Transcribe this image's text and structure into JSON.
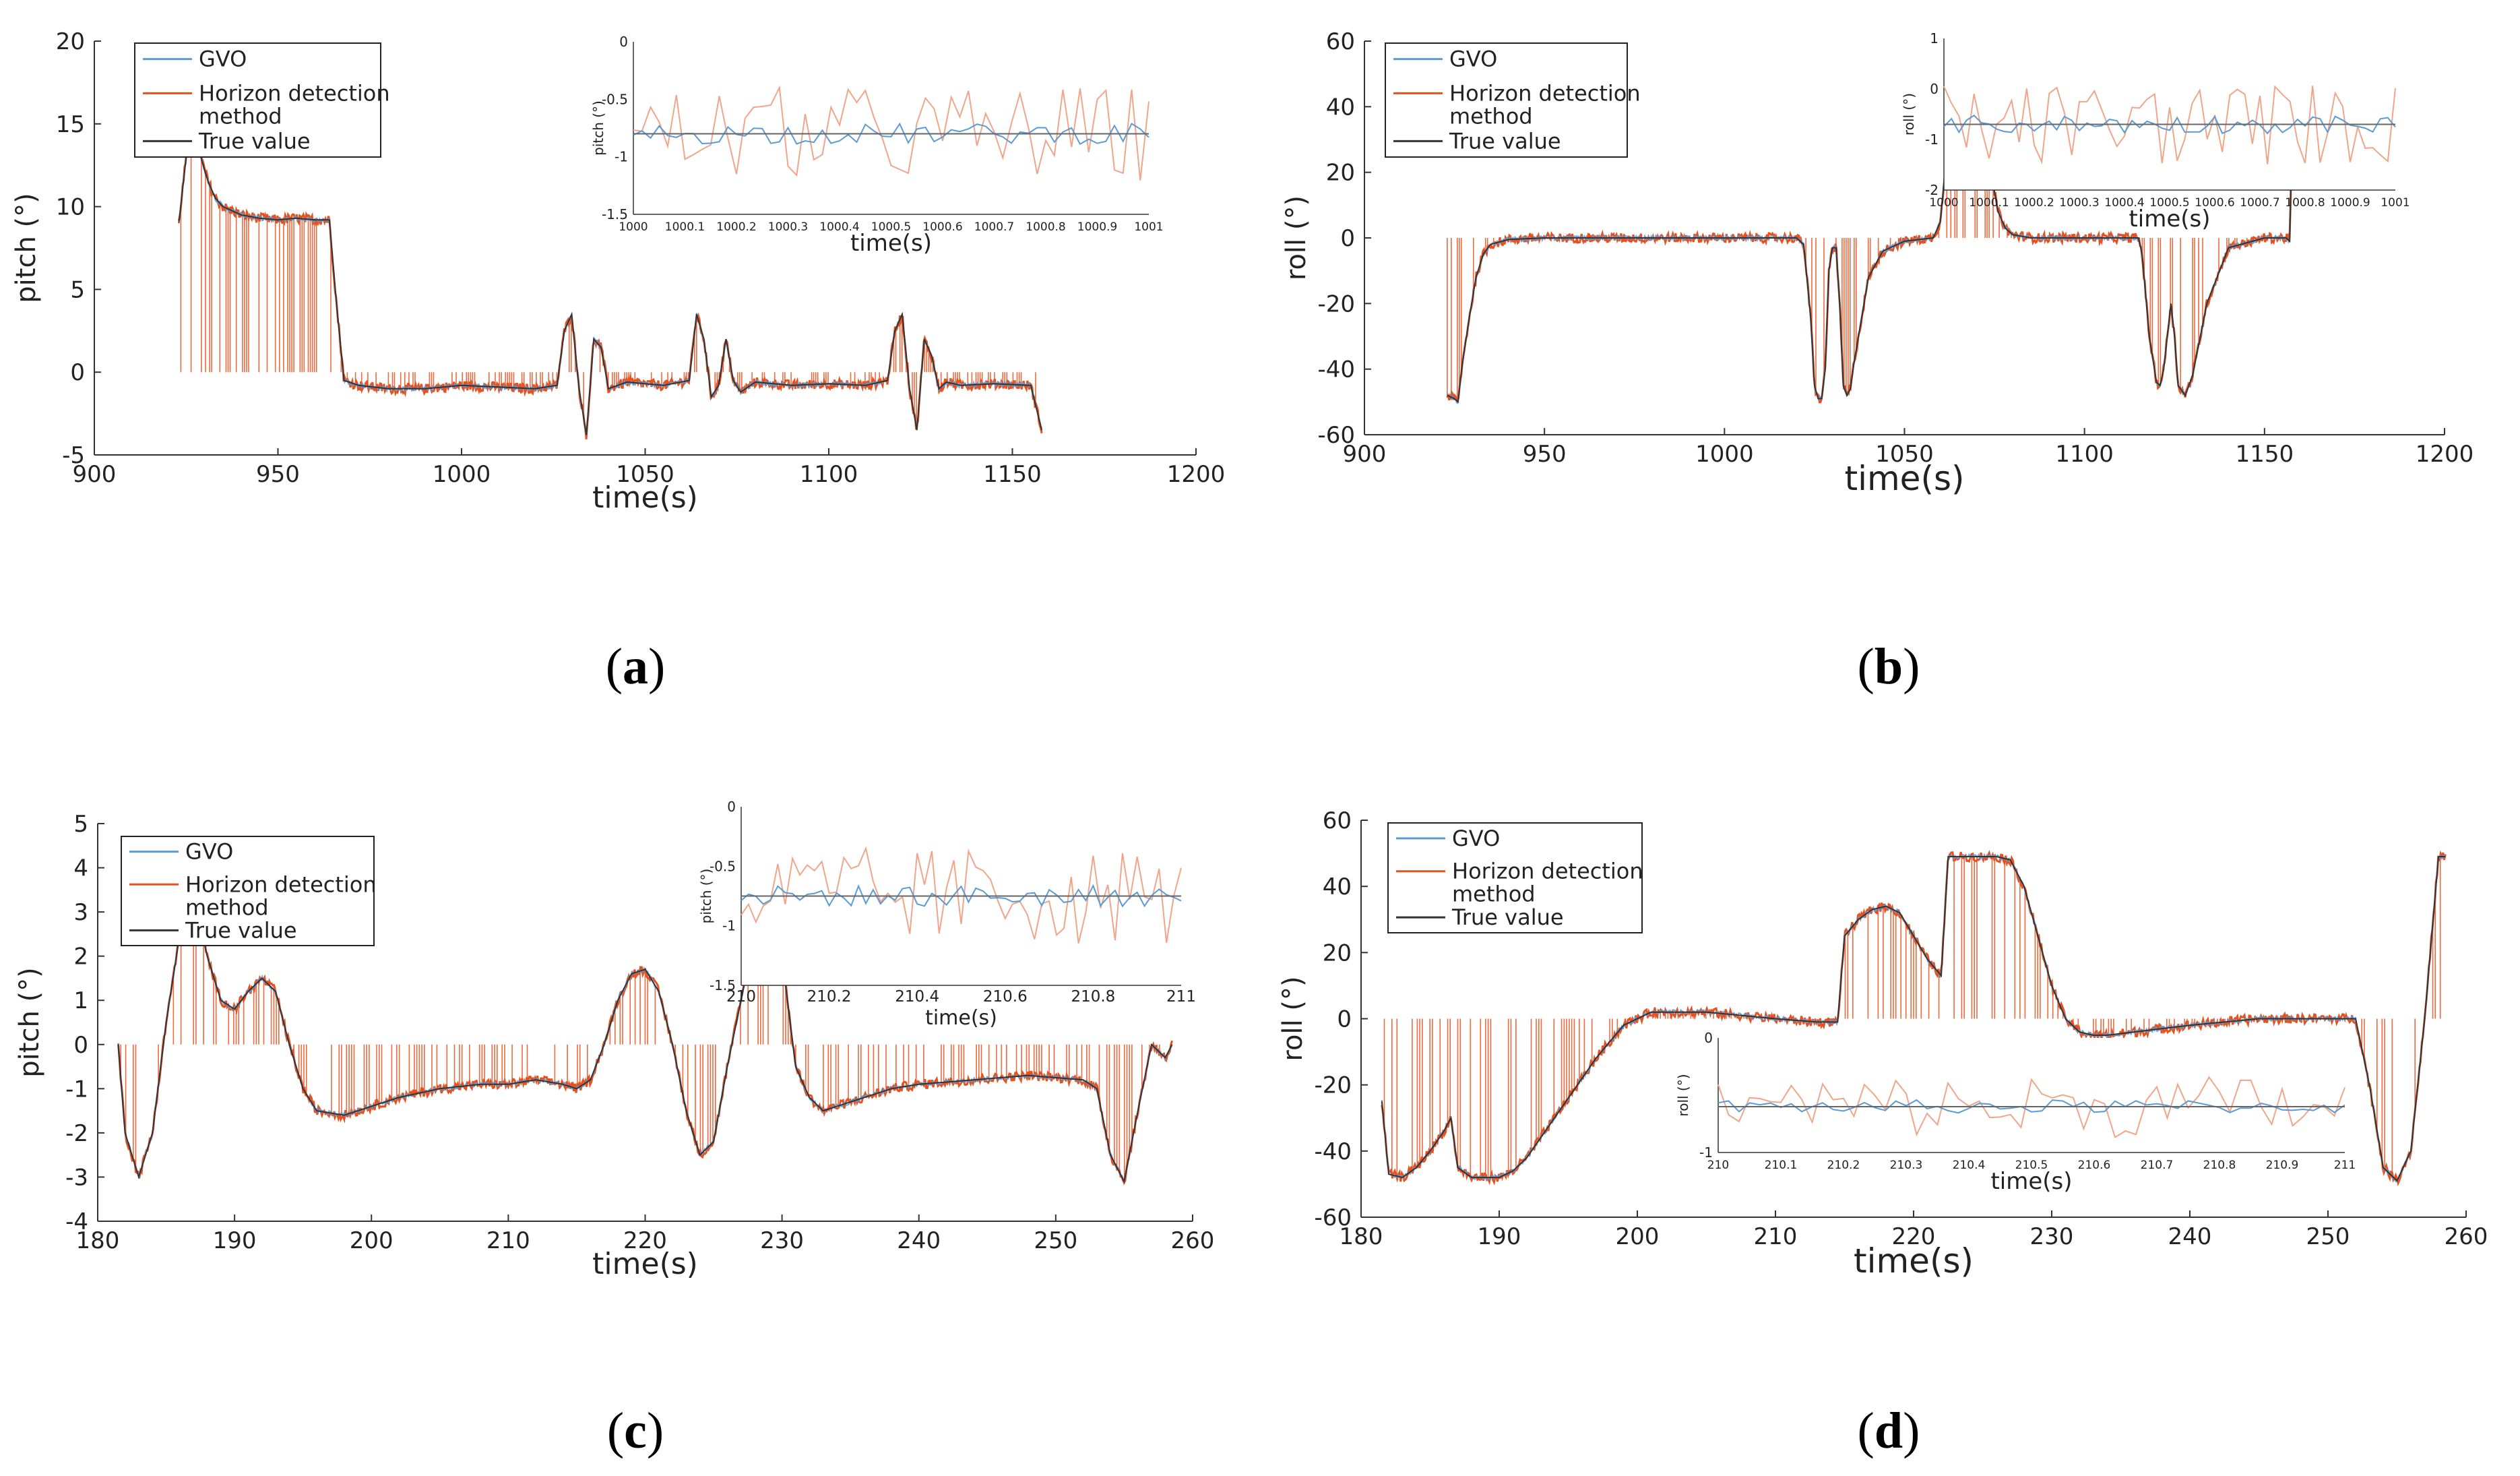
{
  "colors": {
    "gvo": "#5b9bd5",
    "horizon": "#e8501e",
    "truth": "#333333",
    "axis": "#333333"
  },
  "legend": {
    "gvo": "GVO",
    "horizon_line1": "Horizon detection",
    "horizon_line2": "method",
    "truth": "True value"
  },
  "captions": {
    "a": "a",
    "b": "b",
    "c": "c",
    "d": "d"
  },
  "chart_data": [
    {
      "panel": "a",
      "type": "line",
      "xlabel": "time(s)",
      "ylabel": "pitch  (°)",
      "xlim": [
        900,
        1200
      ],
      "ylim": [
        -5,
        20
      ],
      "xticks": [
        "900",
        "950",
        "1000",
        "1050",
        "1100",
        "1150",
        "1200"
      ],
      "yticks": [
        "-5",
        "0",
        "5",
        "10",
        "15",
        "20"
      ],
      "series": [
        {
          "name": "True value",
          "x": [
            923,
            925,
            927,
            929,
            931,
            933,
            935,
            940,
            945,
            950,
            955,
            960,
            964,
            966,
            968,
            972,
            980,
            990,
            1000,
            1010,
            1020,
            1026,
            1028,
            1030,
            1032,
            1034,
            1036,
            1038,
            1040,
            1045,
            1055,
            1062,
            1064,
            1066,
            1068,
            1070,
            1072,
            1074,
            1076,
            1080,
            1090,
            1100,
            1110,
            1116,
            1118,
            1120,
            1122,
            1124,
            1126,
            1128,
            1130,
            1132,
            1136,
            1145,
            1155,
            1158
          ],
          "y": [
            9,
            13,
            14.5,
            13,
            11.5,
            10.5,
            10,
            9.5,
            9.3,
            9.2,
            9.3,
            9.2,
            9.2,
            4,
            -0.5,
            -0.8,
            -1,
            -1,
            -0.8,
            -0.9,
            -1,
            -0.8,
            2.5,
            3.5,
            -1,
            -3.8,
            2,
            1.5,
            -1,
            -0.6,
            -0.8,
            -0.5,
            3.5,
            2,
            -1.5,
            -0.8,
            2,
            -0.5,
            -1.2,
            -0.6,
            -0.8,
            -0.7,
            -0.8,
            -0.5,
            2.5,
            3.5,
            -1,
            -3.5,
            2,
            1,
            -1,
            -0.6,
            -0.8,
            -0.7,
            -0.8,
            -3.5
          ]
        }
      ],
      "inset": {
        "xlabel": "time(s)",
        "ylabel": "pitch  (°)",
        "xlim": [
          1000,
          1001
        ],
        "ylim": [
          -1.5,
          0
        ],
        "xticks": [
          "1000",
          "1000.1",
          "1000.2",
          "1000.3",
          "1000.4",
          "1000.5",
          "1000.6",
          "1000.7",
          "1000.8",
          "1000.9",
          "1001"
        ],
        "yticks": [
          "-1.5",
          "-1",
          "-0.5",
          "0"
        ],
        "true_value": -0.8
      }
    },
    {
      "panel": "b",
      "type": "line",
      "xlabel": "time(s)",
      "ylabel": "roll  (°)",
      "xlim": [
        900,
        1200
      ],
      "ylim": [
        -60,
        60
      ],
      "xticks": [
        "900",
        "950",
        "1000",
        "1050",
        "1100",
        "1150",
        "1200"
      ],
      "yticks": [
        "-60",
        "-40",
        "-20",
        "0",
        "20",
        "40",
        "60"
      ],
      "series": [
        {
          "name": "True value",
          "x": [
            923,
            925,
            926,
            927,
            929,
            931,
            933,
            935,
            940,
            950,
            960,
            980,
            1000,
            1010,
            1020,
            1022,
            1024,
            1025,
            1026,
            1027,
            1028,
            1029,
            1030,
            1031,
            1032,
            1033,
            1034,
            1035,
            1036,
            1038,
            1040,
            1044,
            1050,
            1058,
            1060,
            1062,
            1063,
            1064,
            1065,
            1067,
            1068,
            1069,
            1070,
            1072,
            1074,
            1076,
            1078,
            1080,
            1085,
            1090,
            1100,
            1110,
            1115,
            1116,
            1118,
            1120,
            1121,
            1122,
            1124,
            1125,
            1126,
            1128,
            1130,
            1134,
            1140,
            1150,
            1156,
            1157,
            1158
          ],
          "y": [
            -48,
            -49,
            -50,
            -40,
            -25,
            -12,
            -5,
            -2,
            -0.5,
            0,
            0,
            0,
            0,
            0,
            0,
            -2,
            -25,
            -45,
            -49,
            -49,
            -40,
            -10,
            -3,
            -3,
            -20,
            -45,
            -48,
            -46,
            -38,
            -25,
            -12,
            -4,
            -1,
            0,
            5,
            30,
            48,
            49,
            45,
            20,
            40,
            49,
            48,
            40,
            20,
            8,
            3,
            1,
            0,
            0,
            0,
            0,
            0,
            -5,
            -30,
            -44,
            -45,
            -40,
            -20,
            -30,
            -45,
            -48,
            -42,
            -20,
            -3,
            0,
            0,
            -1,
            50
          ]
        }
      ],
      "inset": {
        "xlabel": "time(s)",
        "ylabel": "roll  (°)",
        "xlim": [
          1000,
          1001
        ],
        "ylim": [
          -2,
          1
        ],
        "xticks": [
          "1000",
          "1000.1",
          "1000.2",
          "1000.3",
          "1000.4",
          "1000.5",
          "1000.6",
          "1000.7",
          "1000.8",
          "1000.9",
          "1001"
        ],
        "yticks": [
          "-2",
          "-1",
          "0",
          "1"
        ],
        "true_value": -0.7
      }
    },
    {
      "panel": "c",
      "type": "line",
      "xlabel": "time(s)",
      "ylabel": "pitch  (°)",
      "xlim": [
        180,
        260
      ],
      "ylim": [
        -4,
        5
      ],
      "xticks": [
        "180",
        "190",
        "200",
        "210",
        "220",
        "230",
        "240",
        "250",
        "260"
      ],
      "yticks": [
        "-4",
        "-3",
        "-2",
        "-1",
        "0",
        "1",
        "2",
        "3",
        "4",
        "5"
      ],
      "series": [
        {
          "name": "True value",
          "x": [
            181.5,
            182,
            183,
            184,
            185,
            186,
            187,
            188,
            189,
            190,
            191,
            192,
            193,
            194,
            195,
            196,
            198,
            200,
            202,
            205,
            208,
            210,
            212,
            214,
            215,
            216,
            217,
            218,
            219,
            220,
            221,
            222,
            223,
            224,
            225,
            226,
            227,
            228,
            229,
            230,
            231,
            232,
            233,
            234,
            236,
            238,
            240,
            244,
            248,
            252,
            253,
            254,
            255,
            256,
            257,
            258,
            258.5
          ],
          "y": [
            0,
            -2,
            -3,
            -2,
            0.5,
            2.5,
            3.4,
            2,
            1,
            0.8,
            1.2,
            1.5,
            1.2,
            0,
            -1,
            -1.5,
            -1.6,
            -1.4,
            -1.2,
            -1,
            -0.9,
            -0.9,
            -0.8,
            -0.9,
            -1,
            -0.8,
            0,
            1,
            1.6,
            1.7,
            1.2,
            0,
            -1.5,
            -2.5,
            -2.2,
            -0.5,
            1,
            2.5,
            3.2,
            2,
            -0.5,
            -1.2,
            -1.5,
            -1.4,
            -1.2,
            -1,
            -0.9,
            -0.8,
            -0.7,
            -0.8,
            -1,
            -2.5,
            -3.1,
            -1.5,
            0,
            -0.3,
            0
          ]
        }
      ],
      "inset": {
        "xlabel": "time(s)",
        "ylabel": "pitch  (°)",
        "xlim": [
          210,
          211
        ],
        "ylim": [
          -1.5,
          0
        ],
        "xticks": [
          "210",
          "210.2",
          "210.4",
          "210.6",
          "210.8",
          "211"
        ],
        "yticks": [
          "-1.5",
          "-1",
          "-0.5",
          "0"
        ],
        "true_value": -0.75
      }
    },
    {
      "panel": "d",
      "type": "line",
      "xlabel": "time(s)",
      "ylabel": "roll  (°)",
      "xlim": [
        180,
        260
      ],
      "ylim": [
        -60,
        60
      ],
      "xticks": [
        "180",
        "190",
        "200",
        "210",
        "220",
        "230",
        "240",
        "250",
        "260"
      ],
      "yticks": [
        "-60",
        "-40",
        "-20",
        "0",
        "20",
        "40",
        "60"
      ],
      "series": [
        {
          "name": "True value",
          "x": [
            181.5,
            182,
            183,
            184,
            185,
            186,
            186.5,
            187,
            188,
            189,
            190,
            191,
            192,
            193,
            195,
            197,
            199,
            201,
            205,
            210,
            213,
            214.5,
            215,
            216,
            217,
            218,
            219,
            220,
            221,
            222,
            222.5,
            223,
            224,
            225,
            226,
            227,
            228,
            229,
            230,
            231,
            232,
            233,
            234,
            236,
            240,
            245,
            250,
            252,
            253,
            254,
            255,
            256,
            257,
            258,
            258.5
          ],
          "y": [
            -25,
            -47,
            -48,
            -45,
            -40,
            -34,
            -30,
            -45,
            -48,
            -48,
            -48,
            -46,
            -42,
            -36,
            -24,
            -12,
            -2,
            2,
            2,
            0,
            -1,
            -1,
            25,
            30,
            33,
            34,
            32,
            25,
            18,
            13,
            49,
            49,
            49,
            49,
            49,
            48,
            40,
            25,
            10,
            0,
            -4,
            -5,
            -5,
            -4,
            -2,
            0,
            0,
            0,
            -20,
            -45,
            -49,
            -40,
            0,
            49,
            49
          ]
        }
      ],
      "inset": {
        "xlabel": "time(s)",
        "ylabel": "roll  (°)",
        "xlim": [
          210,
          211
        ],
        "ylim": [
          -1,
          0
        ],
        "xticks": [
          "210",
          "210.1",
          "210.2",
          "210.3",
          "210.4",
          "210.5",
          "210.6",
          "210.7",
          "210.8",
          "210.9",
          "211"
        ],
        "yticks": [
          "-1",
          "0"
        ],
        "true_value": -0.6
      }
    }
  ]
}
